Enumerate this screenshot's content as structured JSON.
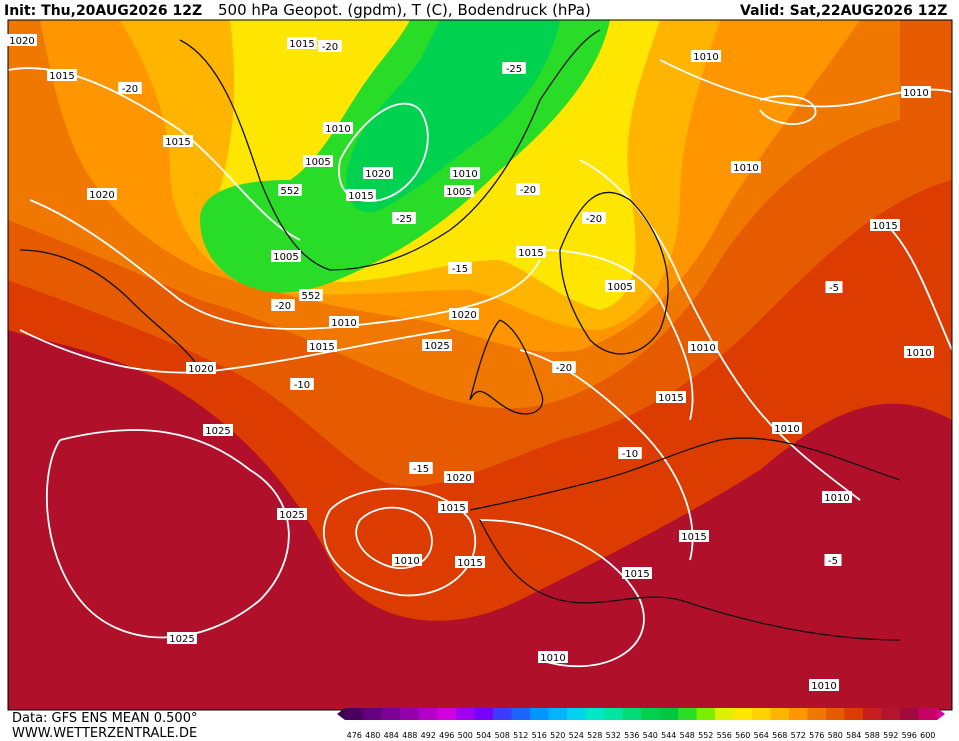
{
  "header": {
    "init": "Init: Thu,20AUG2026 12Z",
    "title": "500 hPa Geopot. (gpdm), T (C), Bodendruck (hPa)",
    "valid": "Valid: Sat,22AUG2026 12Z"
  },
  "map_labels": [
    "1020",
    "1015",
    "-20",
    "1015",
    "-25",
    "1010",
    "-20",
    "1010",
    "1015",
    "1010",
    "1005",
    "1020",
    "1010",
    "1010",
    "552",
    "1015",
    "1005",
    "-20",
    "1020",
    "-25",
    "-20",
    "1015",
    "1005",
    "1015",
    "-15",
    "1005",
    "-5",
    "552",
    "-20",
    "1010",
    "1020",
    "1015",
    "1025",
    "1010",
    "1010",
    "-20",
    "1020",
    "-10",
    "1015",
    "1025",
    "1010",
    "-10",
    "-15",
    "1020",
    "1010",
    "1025",
    "1015",
    "1015",
    "1010",
    "1015",
    "1015",
    "-5",
    "1025",
    "1010",
    "1010"
  ],
  "footer": {
    "data": "Data: GFS ENS MEAN 0.500°",
    "site": "WWW.WETTERZENTRALE.DE"
  },
  "colorbar": {
    "labels": [
      "476",
      "480",
      "484",
      "488",
      "492",
      "496",
      "500",
      "504",
      "508",
      "512",
      "516",
      "520",
      "524",
      "528",
      "532",
      "536",
      "540",
      "544",
      "548",
      "552",
      "556",
      "560",
      "564",
      "568",
      "572",
      "576",
      "580",
      "584",
      "588",
      "592",
      "596",
      "600"
    ],
    "colors": [
      "#4b0060",
      "#64007f",
      "#7d0096",
      "#9600ad",
      "#b400c8",
      "#d200e0",
      "#a000f0",
      "#7800ff",
      "#3c3cff",
      "#1e64ff",
      "#0096ff",
      "#00b4ff",
      "#00d2f0",
      "#00e6c8",
      "#00e6a0",
      "#00dc78",
      "#00d250",
      "#00c83c",
      "#28dc28",
      "#78f000",
      "#dcf000",
      "#ffe600",
      "#ffd200",
      "#ffb400",
      "#ff9600",
      "#f07800",
      "#e65a00",
      "#dc3c00",
      "#c81e1e",
      "#b4142d",
      "#a00a3c",
      "#c80064"
    ]
  }
}
